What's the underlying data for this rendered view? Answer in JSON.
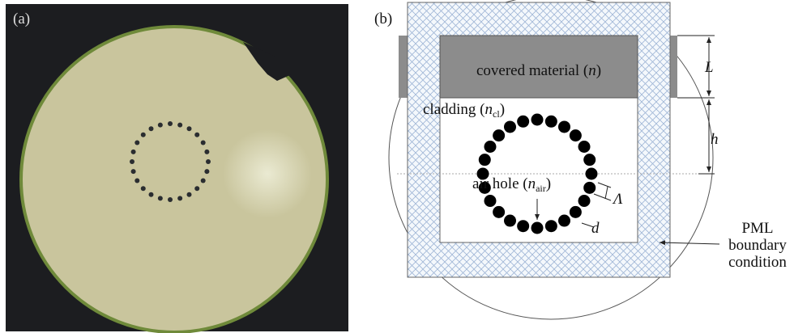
{
  "panels": [
    {
      "label": "(a)"
    },
    {
      "label": "(b)",
      "covered_material": {
        "text": "covered material (",
        "symbol": "n",
        "close": ")"
      },
      "cladding": {
        "text": "cladding (",
        "symbol": "n",
        "subscript": "cl",
        "close": ")"
      },
      "air_hole": {
        "text": "air hole (",
        "symbol": "n",
        "subscript": "air",
        "close": ")"
      },
      "dimensions": {
        "L": "L",
        "h": "h",
        "pitch": "Λ",
        "diameter": "d"
      },
      "boundary": [
        "PML",
        "boundary",
        "condition"
      ]
    }
  ]
}
